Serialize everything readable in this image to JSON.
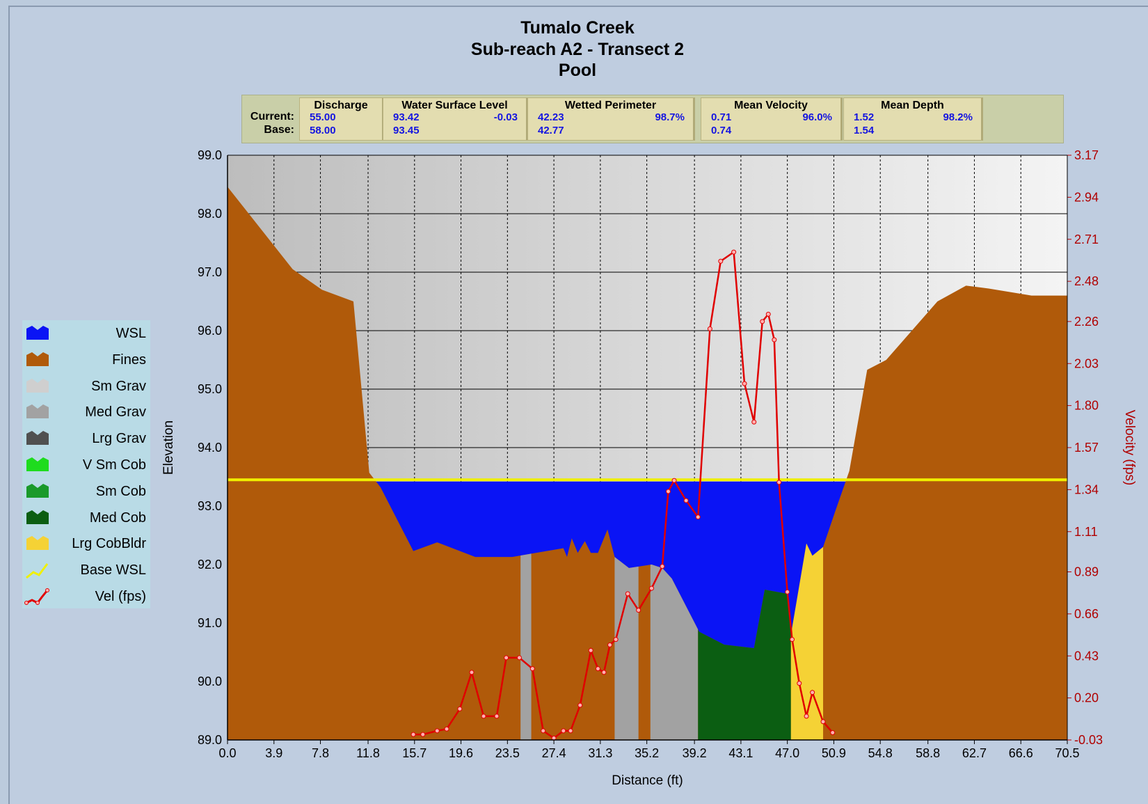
{
  "chart_data": {
    "type": "area",
    "title": [
      "Tumalo Creek",
      "Sub-reach A2 - Transect  2",
      "Pool"
    ],
    "stats": {
      "row_labels": [
        "Current:",
        "Base:"
      ],
      "columns": [
        {
          "header": "Discharge",
          "current": "55.00",
          "base": "58.00"
        },
        {
          "header": "Water Surface Level",
          "current": "93.42",
          "change": "-0.03",
          "base": "93.45"
        },
        {
          "header": "Wetted Perimeter",
          "current": "42.23",
          "change": "98.7%",
          "base": "42.77"
        },
        {
          "header": "Mean Velocity",
          "current": "0.71",
          "change": "96.0%",
          "base": "0.74"
        },
        {
          "header": "Mean Depth",
          "current": "1.52",
          "change": "98.2%",
          "base": "1.54"
        }
      ]
    },
    "x_label": "Distance (ft)",
    "y_label": "Elevation",
    "y2_label": "Velocity (fps)",
    "xlim": [
      0,
      70.5
    ],
    "xticks": [
      {
        "value": 0,
        "label": "0.0"
      },
      3.9,
      7.8,
      11.8,
      15.7,
      19.6,
      23.5,
      27.4,
      31.3,
      35.2,
      39.2,
      43.1,
      {
        "value": 47,
        "label": "47.0"
      },
      50.9,
      54.8,
      58.8,
      62.7,
      66.6,
      70.5
    ],
    "ylim": [
      89,
      99
    ],
    "yticks": [
      {
        "value": 89,
        "label": "89.0"
      },
      {
        "value": 90,
        "label": "90.0"
      },
      {
        "value": 91,
        "label": "91.0"
      },
      {
        "value": 92,
        "label": "92.0"
      },
      {
        "value": 93,
        "label": "93.0"
      },
      {
        "value": 94,
        "label": "94.0"
      },
      {
        "value": 95,
        "label": "95.0"
      },
      {
        "value": 96,
        "label": "96.0"
      },
      {
        "value": 97,
        "label": "97.0"
      },
      {
        "value": 98,
        "label": "98.0"
      },
      {
        "value": 99,
        "label": "99.0"
      }
    ],
    "y2lim": [
      -0.03,
      3.17
    ],
    "y2ticks": [
      -0.03,
      {
        "value": 0.2,
        "label": "0.20"
      },
      0.43,
      0.66,
      0.89,
      1.11,
      1.34,
      1.57,
      {
        "value": 1.8,
        "label": "1.80"
      },
      2.03,
      2.26,
      2.48,
      2.71,
      2.94,
      3.17
    ],
    "legend": [
      {
        "name": "WSL",
        "color": "#0a14f5"
      },
      {
        "name": "Fines",
        "color": "#b05a0a"
      },
      {
        "name": "Sm Grav",
        "color": "#cfcfcf"
      },
      {
        "name": "Med Grav",
        "color": "#a2a2a2"
      },
      {
        "name": "Lrg Grav",
        "color": "#505050"
      },
      {
        "name": "V Sm Cob",
        "color": "#1edc1e"
      },
      {
        "name": "Sm Cob",
        "color": "#1a9a2a"
      },
      {
        "name": "Med Cob",
        "color": "#0b5e12"
      },
      {
        "name": "Lrg CobBldr",
        "color": "#f5d235"
      },
      {
        "name": "Base WSL",
        "color": "#f0f000"
      },
      {
        "name": "Vel (fps)",
        "color": "#e00000"
      }
    ],
    "wsl": 93.42,
    "base_wsl": 93.45,
    "bed": {
      "x": [
        0,
        5.47,
        7.93,
        10.57,
        11.9,
        12.85,
        15.6,
        17.6,
        20.8,
        23.9,
        28.2,
        28.5,
        28.9,
        29.4,
        30.0,
        30.5,
        31.1,
        31.9,
        32.5,
        33.7,
        35.6,
        36.5,
        37.3,
        39.6,
        41.7,
        44.2,
        45.1,
        47.0,
        47.3,
        48.6,
        49.1,
        50.0,
        51.0,
        52.2,
        53.7,
        55.3,
        59.6,
        62.0,
        63.9,
        67.5,
        70.5
      ],
      "elevation": [
        98.46,
        97.05,
        96.7,
        96.5,
        93.57,
        93.32,
        92.23,
        92.38,
        92.13,
        92.13,
        92.28,
        92.13,
        92.45,
        92.2,
        92.4,
        92.2,
        92.2,
        92.6,
        92.13,
        91.94,
        92.0,
        91.94,
        91.76,
        90.85,
        90.63,
        90.57,
        91.57,
        91.5,
        90.8,
        92.36,
        92.15,
        92.3,
        92.9,
        93.6,
        95.33,
        95.5,
        96.5,
        96.77,
        96.72,
        96.6,
        96.6
      ]
    },
    "zones": [
      {
        "from": 24.6,
        "to": 25.5,
        "substrate": 3
      },
      {
        "from": 32.5,
        "to": 34.5,
        "substrate": 3
      },
      {
        "from": 35.5,
        "to": 39.5,
        "substrate": 3
      },
      {
        "from": 39.5,
        "to": 47.3,
        "substrate": 7
      },
      {
        "from": 47.3,
        "to": 50.0,
        "substrate": 8
      }
    ],
    "velocity": {
      "x": [
        15.6,
        16.4,
        17.6,
        18.4,
        19.5,
        20.5,
        21.5,
        22.6,
        23.4,
        24.5,
        25.6,
        26.5,
        27.4,
        28.2,
        28.8,
        29.6,
        30.5,
        31.1,
        31.6,
        32.1,
        32.6,
        33.6,
        34.5,
        35.6,
        36.5,
        37.0,
        37.5,
        38.5,
        39.5,
        40.5,
        41.4,
        42.5,
        43.4,
        44.2,
        44.9,
        45.4,
        45.9,
        46.3,
        47.0,
        47.4,
        48.0,
        48.6,
        49.1,
        50.0,
        50.8
      ],
      "values": [
        0.0,
        0.0,
        0.02,
        0.03,
        0.14,
        0.34,
        0.1,
        0.1,
        0.42,
        0.42,
        0.36,
        0.02,
        -0.02,
        0.02,
        0.02,
        0.16,
        0.46,
        0.36,
        0.34,
        0.49,
        0.52,
        0.77,
        0.68,
        0.8,
        0.92,
        1.33,
        1.39,
        1.28,
        1.19,
        2.22,
        2.59,
        2.64,
        1.92,
        1.71,
        2.26,
        2.3,
        2.16,
        1.38,
        0.78,
        0.52,
        0.28,
        0.1,
        0.23,
        0.07,
        0.01
      ]
    }
  }
}
